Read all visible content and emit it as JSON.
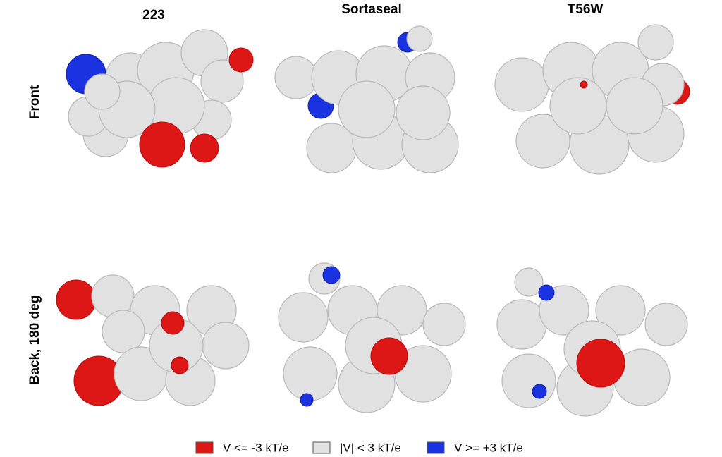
{
  "columns": [
    "223",
    "Sortaseal",
    "T56W"
  ],
  "rows": [
    "Front",
    "Back, 180 deg"
  ],
  "legend": [
    "V <= -3 kT/e",
    "|V| < 3 kT/e",
    "V >= +3 kT/e"
  ]
}
